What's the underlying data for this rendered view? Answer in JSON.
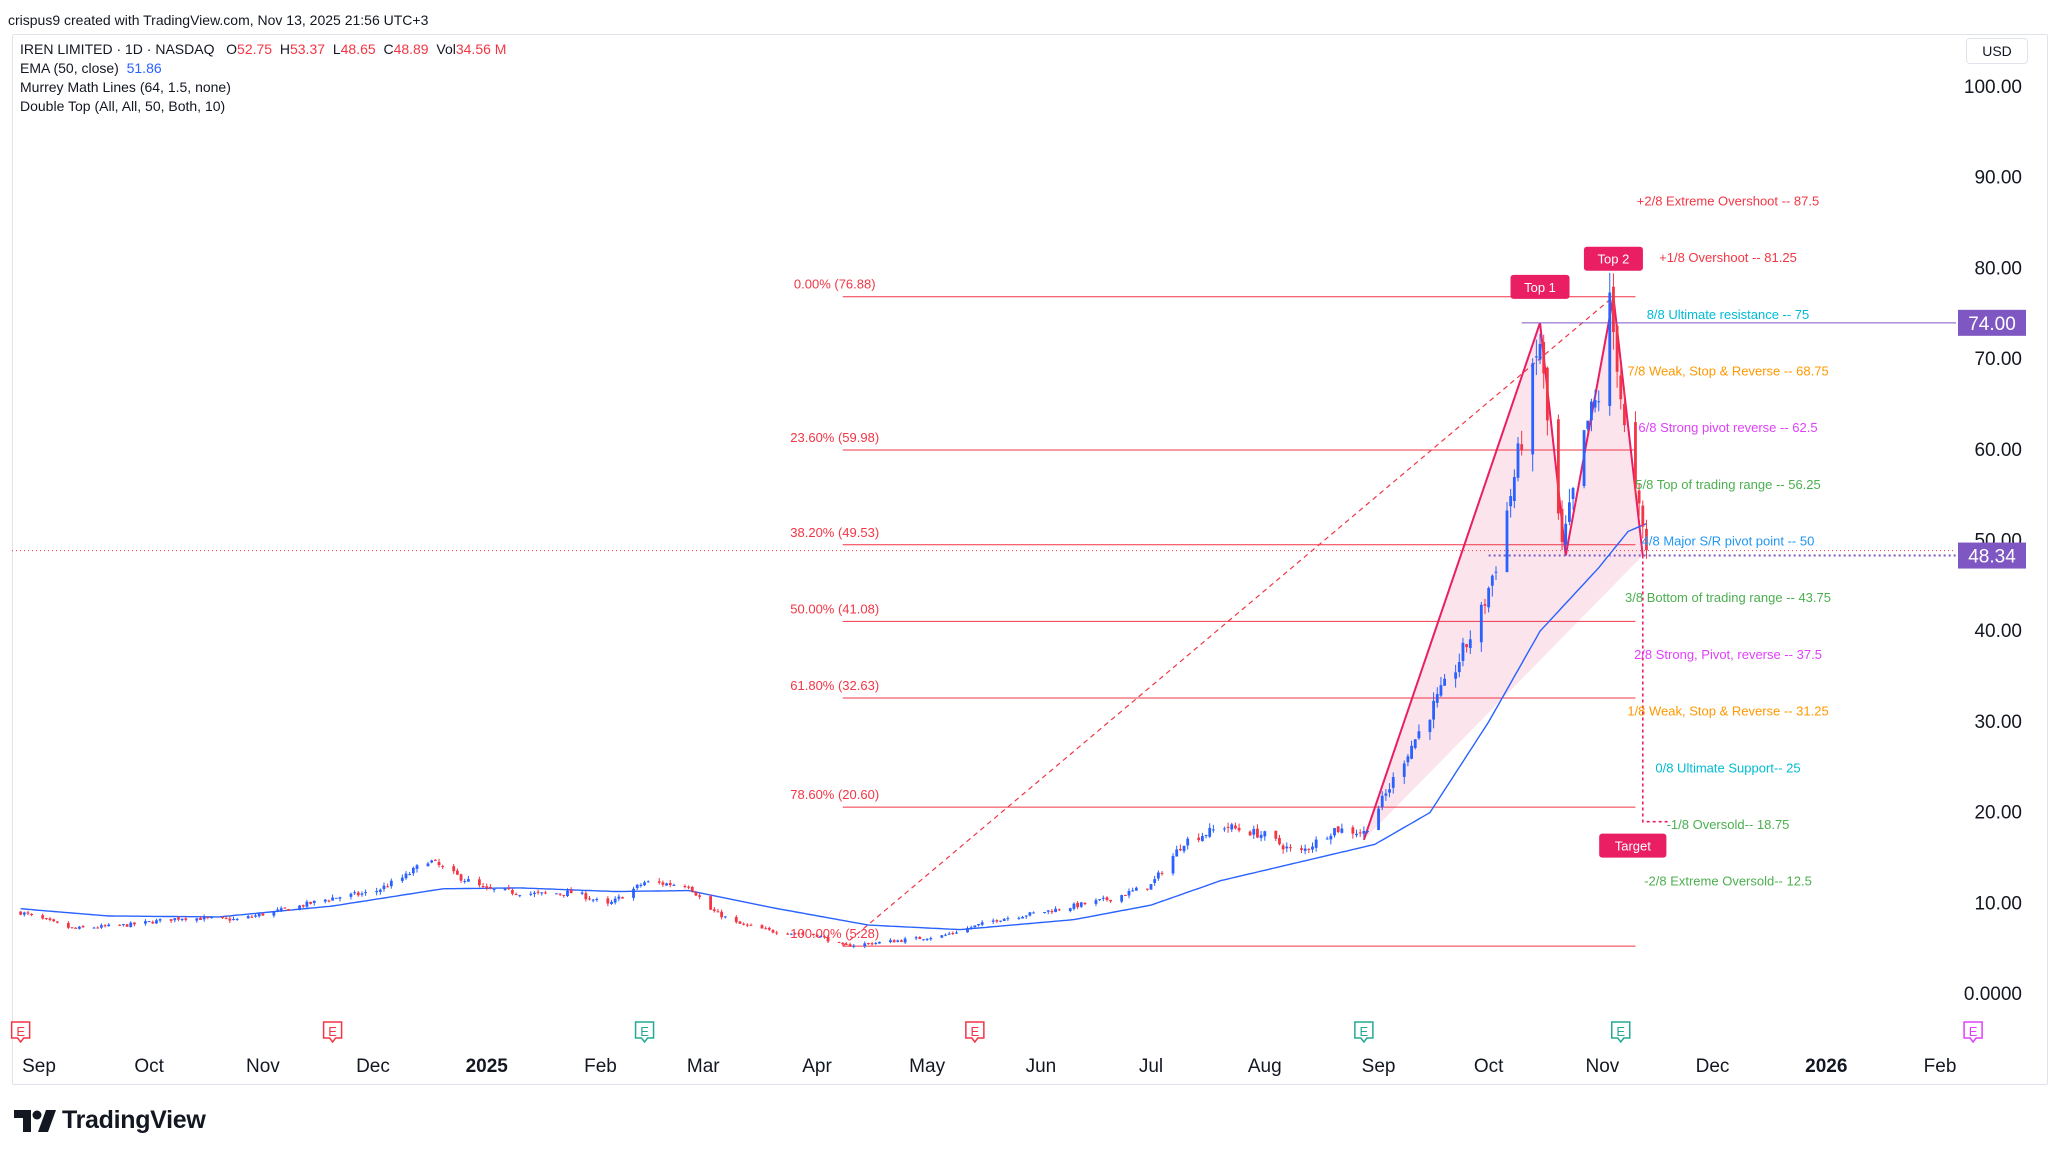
{
  "credit": "crispus9 created with TradingView.com, Nov 13, 2025 21:56 UTC+3",
  "legend": {
    "symbol": "IREN LIMITED · 1D · NASDAQ",
    "o_label": "O",
    "o_value": "52.75",
    "h_label": "H",
    "h_value": "53.37",
    "l_label": "L",
    "l_value": "48.65",
    "c_label": "C",
    "c_value": "48.89",
    "vol_label": "Vol",
    "vol_value": "34.56 M",
    "ema": "EMA (50, close)",
    "ema_value": "51.86",
    "murrey": "Murrey Math Lines (64, 1.5, none)",
    "double_top": "Double Top (All, All, 50, Both, 10)"
  },
  "currency_button": "USD",
  "logo_text": "TradingView",
  "colors": {
    "up": "#2962ff",
    "down": "#f23645",
    "ema": "#2962ff",
    "fib": "#f23645",
    "pattern": "#f23645",
    "price_label": "#7e57c2",
    "target": "#e91e63"
  },
  "chart_data": {
    "type": "candlestick",
    "ylim": [
      0,
      100
    ],
    "y_ticks": [
      "100.00",
      "90.00",
      "80.00",
      "70.00",
      "60.00",
      "50.00",
      "40.00",
      "30.00",
      "20.00",
      "10.00",
      "0.0000"
    ],
    "x_ticks": [
      {
        "label": "Sep",
        "bold": false
      },
      {
        "label": "Oct",
        "bold": false
      },
      {
        "label": "Nov",
        "bold": false
      },
      {
        "label": "Dec",
        "bold": false
      },
      {
        "label": "2025",
        "bold": true
      },
      {
        "label": "Feb",
        "bold": false
      },
      {
        "label": "Mar",
        "bold": false
      },
      {
        "label": "Apr",
        "bold": false
      },
      {
        "label": "May",
        "bold": false
      },
      {
        "label": "Jun",
        "bold": false
      },
      {
        "label": "Jul",
        "bold": false
      },
      {
        "label": "Aug",
        "bold": false
      },
      {
        "label": "Sep",
        "bold": false
      },
      {
        "label": "Oct",
        "bold": false
      },
      {
        "label": "Nov",
        "bold": false
      },
      {
        "label": "Dec",
        "bold": false
      },
      {
        "label": "2026",
        "bold": true
      },
      {
        "label": "Feb",
        "bold": false
      }
    ],
    "price_keypoints": [
      [
        "2024-08-27",
        9.0
      ],
      [
        "2024-09-10",
        7.2
      ],
      [
        "2024-09-25",
        7.6
      ],
      [
        "2024-10-10",
        8.4
      ],
      [
        "2024-10-25",
        8.2
      ],
      [
        "2024-11-08",
        9.4
      ],
      [
        "2024-11-20",
        10.6
      ],
      [
        "2024-12-01",
        11.2
      ],
      [
        "2024-12-10",
        13.0
      ],
      [
        "2024-12-16",
        14.8
      ],
      [
        "2024-12-23",
        13.2
      ],
      [
        "2025-01-01",
        11.5
      ],
      [
        "2025-01-15",
        11.0
      ],
      [
        "2025-01-25",
        11.2
      ],
      [
        "2025-02-03",
        9.8
      ],
      [
        "2025-02-13",
        12.3
      ],
      [
        "2025-02-25",
        12.0
      ],
      [
        "2025-03-03",
        9.3
      ],
      [
        "2025-03-10",
        7.8
      ],
      [
        "2025-03-20",
        6.9
      ],
      [
        "2025-04-01",
        6.5
      ],
      [
        "2025-04-08",
        5.3
      ],
      [
        "2025-04-21",
        5.8
      ],
      [
        "2025-05-05",
        6.4
      ],
      [
        "2025-05-20",
        8.2
      ],
      [
        "2025-06-05",
        9.3
      ],
      [
        "2025-06-20",
        10.5
      ],
      [
        "2025-07-01",
        12.0
      ],
      [
        "2025-07-10",
        16.8
      ],
      [
        "2025-07-21",
        18.5
      ],
      [
        "2025-08-01",
        17.5
      ],
      [
        "2025-08-10",
        15.4
      ],
      [
        "2025-08-20",
        18.2
      ],
      [
        "2025-08-28",
        17.8
      ],
      [
        "2025-09-03",
        22.0
      ],
      [
        "2025-09-08",
        26.0
      ],
      [
        "2025-09-15",
        31.0
      ],
      [
        "2025-09-22",
        36.0
      ],
      [
        "2025-09-29",
        42.0
      ],
      [
        "2025-10-03",
        47.5
      ],
      [
        "2025-10-08",
        57.0
      ],
      [
        "2025-10-15",
        72.0
      ],
      [
        "2025-10-17",
        63.0
      ],
      [
        "2025-10-21",
        49.0
      ],
      [
        "2025-10-24",
        55.0
      ],
      [
        "2025-10-28",
        63.0
      ],
      [
        "2025-10-31",
        66.0
      ],
      [
        "2025-11-03",
        76.0
      ],
      [
        "2025-11-05",
        70.0
      ],
      [
        "2025-11-07",
        62.0
      ],
      [
        "2025-11-10",
        55.0
      ],
      [
        "2025-11-13",
        48.89
      ]
    ],
    "ema_keypoints": [
      [
        "2024-08-27",
        9.4
      ],
      [
        "2024-09-20",
        8.6
      ],
      [
        "2024-10-20",
        8.5
      ],
      [
        "2024-11-20",
        9.7
      ],
      [
        "2024-12-20",
        11.6
      ],
      [
        "2025-01-10",
        11.7
      ],
      [
        "2025-02-05",
        11.3
      ],
      [
        "2025-02-25",
        11.4
      ],
      [
        "2025-03-20",
        9.5
      ],
      [
        "2025-04-15",
        7.6
      ],
      [
        "2025-05-10",
        7.1
      ],
      [
        "2025-06-10",
        8.2
      ],
      [
        "2025-07-01",
        9.8
      ],
      [
        "2025-07-20",
        12.5
      ],
      [
        "2025-08-10",
        14.5
      ],
      [
        "2025-08-31",
        16.5
      ],
      [
        "2025-09-15",
        20.0
      ],
      [
        "2025-10-01",
        30.0
      ],
      [
        "2025-10-15",
        40.0
      ],
      [
        "2025-10-31",
        47.0
      ],
      [
        "2025-11-08",
        51.0
      ],
      [
        "2025-11-13",
        51.86
      ]
    ],
    "fib_levels": [
      {
        "label": "0.00% (76.88)",
        "value": 76.88
      },
      {
        "label": "23.60% (59.98)",
        "value": 59.98
      },
      {
        "label": "38.20% (49.53)",
        "value": 49.53
      },
      {
        "label": "50.00% (41.08)",
        "value": 41.08
      },
      {
        "label": "61.80% (32.63)",
        "value": 32.63
      },
      {
        "label": "78.60% (20.60)",
        "value": 20.6
      },
      {
        "label": "100.00% (5.28)",
        "value": 5.28
      }
    ],
    "fib_range": {
      "start": "2025-04-08",
      "end": "2025-11-10"
    },
    "murrey_levels": [
      {
        "label": "+2/8 Extreme Overshoot --  87.5",
        "value": 87.5,
        "color": "#f23645"
      },
      {
        "label": "+1/8 Overshoot --  81.25",
        "value": 81.25,
        "color": "#f23645"
      },
      {
        "label": "8/8 Ultimate resistance --  75",
        "value": 75,
        "color": "#00bcd4"
      },
      {
        "label": "7/8 Weak, Stop & Reverse --  68.75",
        "value": 68.75,
        "color": "#ff9800"
      },
      {
        "label": "6/8 Strong pivot reverse --  62.5",
        "value": 62.5,
        "color": "#e040fb"
      },
      {
        "label": "5/8 Top of trading range --  56.25",
        "value": 56.25,
        "color": "#4caf50"
      },
      {
        "label": "4/8 Major S/R pivot point --  50",
        "value": 50,
        "color": "#2196f3"
      },
      {
        "label": "3/8 Bottom of trading range --  43.75",
        "value": 43.75,
        "color": "#4caf50"
      },
      {
        "label": "2/8 Strong, Pivot, reverse --  37.5",
        "value": 37.5,
        "color": "#e040fb"
      },
      {
        "label": "1/8 Weak, Stop & Reverse --  31.25",
        "value": 31.25,
        "color": "#ff9800"
      },
      {
        "label": "0/8 Ultimate Support--  25",
        "value": 25,
        "color": "#00bcd4"
      },
      {
        "label": "-1/8 Oversold--  18.75",
        "value": 18.75,
        "color": "#4caf50"
      },
      {
        "label": "-2/8 Extreme Oversold--  12.5",
        "value": 12.5,
        "color": "#4caf50"
      }
    ],
    "double_top": {
      "points": [
        [
          "2025-08-28",
          17.0
        ],
        [
          "2025-10-15",
          74.0
        ],
        [
          "2025-10-22",
          48.34
        ],
        [
          "2025-11-04",
          76.88
        ],
        [
          "2025-11-12",
          48.34
        ]
      ],
      "top1_label": "Top 1",
      "top2_label": "Top 2",
      "target_label": "Target",
      "target_value": 19.0,
      "resistance": 74.0,
      "neckline": 48.34
    },
    "price_labels": [
      {
        "text": "74.00",
        "value": 74.0
      },
      {
        "text": "48.34",
        "value": 48.34
      }
    ],
    "last_price": 48.89,
    "earnings_markers": [
      {
        "date": "2024-08-27",
        "type": "E",
        "color": "#f23645"
      },
      {
        "date": "2024-11-20",
        "type": "E",
        "color": "#f23645"
      },
      {
        "date": "2025-02-13",
        "type": "E",
        "color": "#22ab94"
      },
      {
        "date": "2025-05-14",
        "type": "E",
        "color": "#f23645"
      },
      {
        "date": "2025-08-28",
        "type": "E",
        "color": "#22ab94"
      },
      {
        "date": "2025-11-06",
        "type": "E",
        "color": "#22ab94"
      },
      {
        "date": "2026-02-10",
        "type": "E",
        "color": "#e040fb"
      }
    ]
  }
}
